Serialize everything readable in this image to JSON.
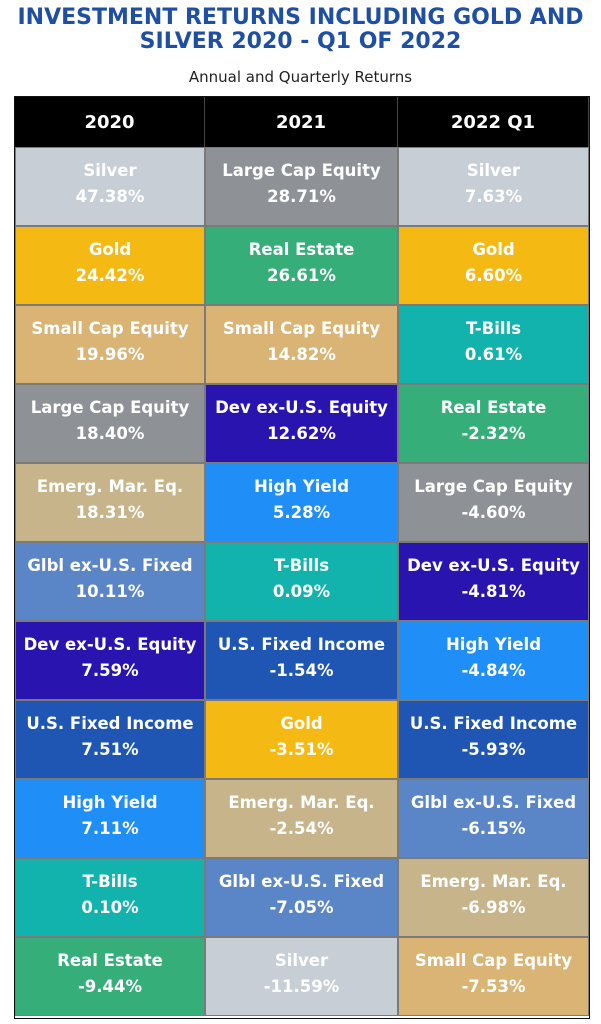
{
  "title_line1": "INVESTMENT RETURNS INCLUDING GOLD AND",
  "title_line2": "SILVER 2020 - Q1 OF 2022",
  "subtitle": "Annual and Quarterly Returns",
  "chart_data": {
    "type": "table",
    "columns": [
      "2020",
      "2021",
      "2022 Q1"
    ],
    "rows": [
      [
        {
          "name": "Silver",
          "value": "47.38%"
        },
        {
          "name": "Large Cap Equity",
          "value": "28.71%"
        },
        {
          "name": "Silver",
          "value": "7.63%"
        }
      ],
      [
        {
          "name": "Gold",
          "value": "24.42%"
        },
        {
          "name": "Real Estate",
          "value": "26.61%"
        },
        {
          "name": "Gold",
          "value": "6.60%"
        }
      ],
      [
        {
          "name": "Small Cap Equity",
          "value": "19.96%"
        },
        {
          "name": "Small Cap Equity",
          "value": "14.82%"
        },
        {
          "name": "T-Bills",
          "value": "0.61%"
        }
      ],
      [
        {
          "name": "Large Cap Equity",
          "value": "18.40%"
        },
        {
          "name": "Dev ex-U.S. Equity",
          "value": "12.62%"
        },
        {
          "name": "Real Estate",
          "value": "-2.32%"
        }
      ],
      [
        {
          "name": "Emerg. Mar. Eq.",
          "value": "18.31%"
        },
        {
          "name": "High Yield",
          "value": "5.28%"
        },
        {
          "name": "Large Cap Equity",
          "value": "-4.60%"
        }
      ],
      [
        {
          "name": "Glbl ex-U.S. Fixed",
          "value": "10.11%"
        },
        {
          "name": "T-Bills",
          "value": "0.09%"
        },
        {
          "name": "Dev ex-U.S. Equity",
          "value": "-4.81%"
        }
      ],
      [
        {
          "name": "Dev ex-U.S. Equity",
          "value": "7.59%"
        },
        {
          "name": "U.S. Fixed Income",
          "value": "-1.54%"
        },
        {
          "name": "High Yield",
          "value": "-4.84%"
        }
      ],
      [
        {
          "name": "U.S. Fixed Income",
          "value": "7.51%"
        },
        {
          "name": "Gold",
          "value": "-3.51%"
        },
        {
          "name": "U.S. Fixed Income",
          "value": "-5.93%"
        }
      ],
      [
        {
          "name": "High Yield",
          "value": "7.11%"
        },
        {
          "name": "Emerg. Mar. Eq.",
          "value": "-2.54%"
        },
        {
          "name": "Glbl ex-U.S. Fixed",
          "value": "-6.15%"
        }
      ],
      [
        {
          "name": "T-Bills",
          "value": "0.10%"
        },
        {
          "name": "Glbl ex-U.S. Fixed",
          "value": "-7.05%"
        },
        {
          "name": "Emerg. Mar. Eq.",
          "value": "-6.98%"
        }
      ],
      [
        {
          "name": "Real Estate",
          "value": "-9.44%"
        },
        {
          "name": "Silver",
          "value": "-11.59%"
        },
        {
          "name": "Small Cap Equity",
          "value": "-7.53%"
        }
      ]
    ],
    "asset_colors": {
      "Silver": "#c8ced6",
      "Gold": "#f5b914",
      "Small Cap Equity": "#d9b474",
      "Large Cap Equity": "#8e9296",
      "Emerg. Mar. Eq.": "#c7b48a",
      "Glbl ex-U.S. Fixed": "#5a86c8",
      "Dev ex-U.S. Equity": "#2a14b0",
      "U.S. Fixed Income": "#1f56b4",
      "High Yield": "#1f8ef7",
      "T-Bills": "#13b3ad",
      "Real Estate": "#36ae7a"
    },
    "header_color": "#000000"
  }
}
